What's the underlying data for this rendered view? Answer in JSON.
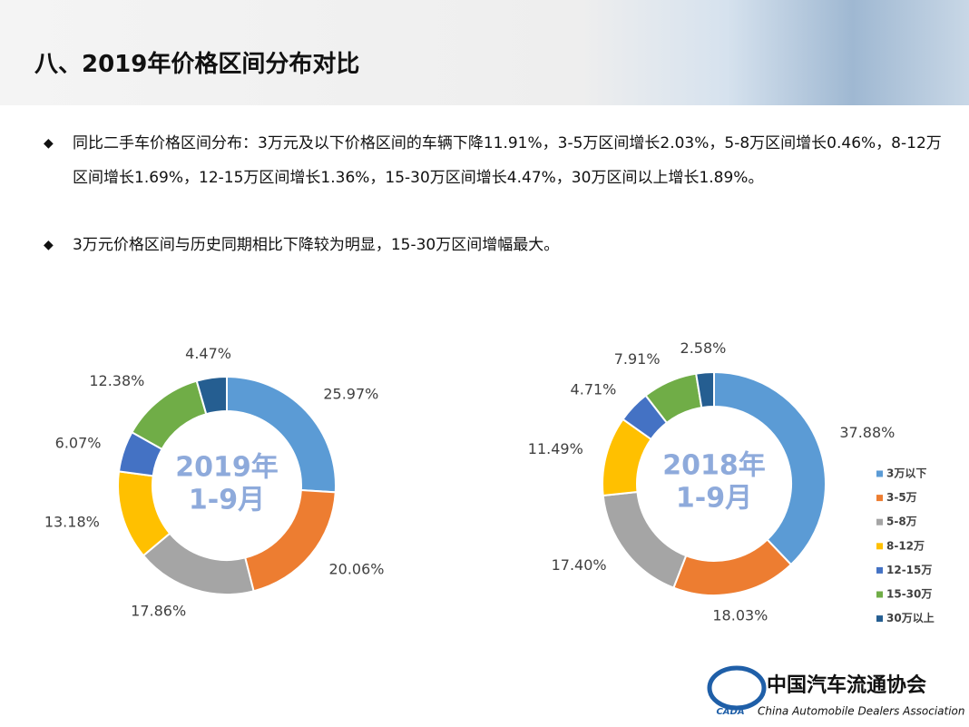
{
  "header": {
    "title": "八、2019年价格区间分布对比"
  },
  "bullets": [
    "同比二手车价格区间分布：3万元及以下价格区间的车辆下降11.91%，3-5万区间增长2.03%，5-8万区间增长0.46%，8-12万区间增长1.69%，12-15万区间增长1.36%，15-30万区间增长4.47%，30万区间以上增长1.89%。",
    "3万元价格区间与历史同期相比下降较为明显，15-30万区间增幅最大。"
  ],
  "chart_data": [
    {
      "type": "donut",
      "center_label": [
        "2019年",
        "1-9月"
      ],
      "values": [
        25.97,
        20.06,
        17.86,
        13.18,
        6.07,
        12.38,
        4.47
      ],
      "value_labels": [
        "25.97%",
        "20.06%",
        "17.86%",
        "13.18%",
        "6.07%",
        "12.38%",
        "4.47%"
      ],
      "colors": [
        "#5b9bd5",
        "#ed7d31",
        "#a5a5a5",
        "#ffc000",
        "#4472c4",
        "#70ad47",
        "#255e91"
      ]
    },
    {
      "type": "donut",
      "center_label": [
        "2018年",
        "1-9月"
      ],
      "categories": [
        "3万以下",
        "3-5万",
        "5-8万",
        "8-12万",
        "12-15万",
        "15-30万",
        "30万以上"
      ],
      "values": [
        37.88,
        18.03,
        17.4,
        11.49,
        4.71,
        7.91,
        2.58
      ],
      "value_labels": [
        "37.88%",
        "18.03%",
        "17.40%",
        "11.49%",
        "4.71%",
        "7.91%",
        "2.58%"
      ],
      "colors": [
        "#5b9bd5",
        "#ed7d31",
        "#a5a5a5",
        "#ffc000",
        "#4472c4",
        "#70ad47",
        "#255e91"
      ],
      "legend": "right"
    }
  ],
  "logo": {
    "name": "中国汽车流通协会",
    "english": "China Automobile Dealers Association",
    "abbr": "CADA"
  }
}
